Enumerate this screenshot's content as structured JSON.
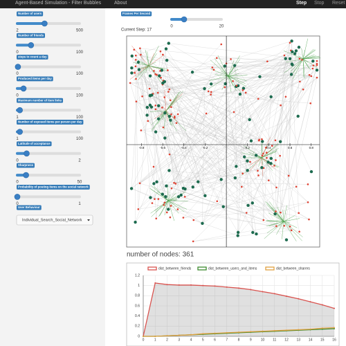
{
  "navbar": {
    "title": "Agent-Based Simulation - Filter Bubbles",
    "links": [
      "About"
    ],
    "buttons": [
      "Step",
      "Stop",
      "Reset"
    ]
  },
  "sidebar": {
    "sliders": [
      {
        "label": "Number of users",
        "min": 2,
        "max": 500,
        "value": 220
      },
      {
        "label": "Number of friends",
        "min": 0,
        "max": 100,
        "value": 22
      },
      {
        "label": "steps to count a day",
        "min": 0,
        "max": 100,
        "value": 1
      },
      {
        "label": "Produced items per day",
        "min": 0,
        "max": 100,
        "value": 10
      },
      {
        "label": "Maximum number of Item links",
        "min": 1,
        "max": 100,
        "value": 5
      },
      {
        "label": "Number of exposed items per person per day",
        "min": 1,
        "max": 100,
        "value": 5
      },
      {
        "label": "Latitude of acceptance",
        "min": 0,
        "max": 2,
        "value": 0.3
      },
      {
        "label": "Sharpness",
        "min": 0,
        "max": 50,
        "value": 7
      },
      {
        "label": "Probability of posting items on the social network",
        "min": 0,
        "max": 1,
        "value": 0
      }
    ],
    "dropdown_label": "User Behaviour",
    "dropdown_value": "Individual_Search_Social_Network"
  },
  "controls": {
    "fps": {
      "label": "Frames Per Second",
      "min": 0,
      "max": 20,
      "value": 5
    },
    "current_step": "Current Step: 17"
  },
  "network": {
    "xlim": [
      -0.94,
      0.88
    ],
    "xticks": [
      -0.8,
      -0.6,
      -0.4,
      -0.2,
      0.2,
      0.4,
      0.6,
      0.8
    ],
    "caption": "number of nodes: 361"
  },
  "chart_data": {
    "type": "line",
    "x": [
      0,
      1,
      2,
      3,
      4,
      5,
      6,
      7,
      8,
      9,
      10,
      11,
      12,
      13,
      14,
      15,
      16
    ],
    "xlim": [
      0,
      16
    ],
    "xticks": [
      0,
      1,
      2,
      3,
      4,
      5,
      6,
      7,
      8,
      9,
      10,
      11,
      12,
      13,
      14,
      15,
      16
    ],
    "ylim": [
      0,
      1.2
    ],
    "yticks": [
      0,
      0.2,
      0.4,
      0.6,
      0.8,
      1,
      1.2
    ],
    "grid": true,
    "series": [
      {
        "name": "dist_between_friends",
        "color": "#d9534f",
        "values": [
          0,
          1.05,
          1.02,
          1.01,
          1.01,
          1.0,
          0.99,
          0.97,
          0.95,
          0.92,
          0.88,
          0.84,
          0.79,
          0.74,
          0.68,
          0.62,
          0.55
        ]
      },
      {
        "name": "dist_between_users_and_items",
        "color": "#3c8a2e",
        "values": [
          0,
          0,
          0.01,
          0.02,
          0.03,
          0.04,
          0.05,
          0.06,
          0.07,
          0.08,
          0.09,
          0.1,
          0.11,
          0.12,
          0.13,
          0.14,
          0.15
        ]
      },
      {
        "name": "dist_between_sharers",
        "color": "#e0a040",
        "values": [
          0,
          0,
          0.01,
          0.02,
          0.03,
          0.05,
          0.06,
          0.07,
          0.08,
          0.09,
          0.1,
          0.11,
          0.12,
          0.13,
          0.14,
          0.16,
          0.17
        ]
      }
    ]
  }
}
